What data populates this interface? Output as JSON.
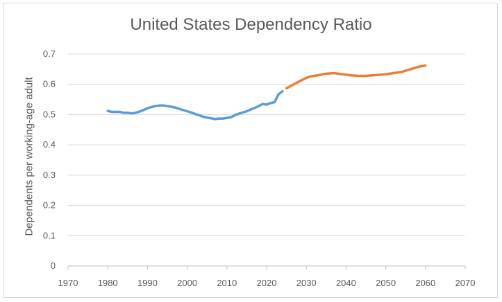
{
  "chart_data": {
    "type": "line",
    "title": "United States Dependency Ratio",
    "xlabel": "",
    "ylabel": "Dependents per working-age adult",
    "xlim": [
      1970,
      2070
    ],
    "ylim": [
      0,
      0.7
    ],
    "xticks": [
      "1970",
      "1980",
      "1990",
      "2000",
      "2010",
      "2020",
      "2030",
      "2040",
      "2050",
      "2060",
      "2070"
    ],
    "yticks": [
      "0",
      "0.1",
      "0.2",
      "0.3",
      "0.4",
      "0.5",
      "0.6",
      "0.7"
    ],
    "grid": "horizontal",
    "legend": "none",
    "series": [
      {
        "color": "#5b9bd5",
        "x": [
          1980,
          1981,
          1982,
          1983,
          1984,
          1985,
          1986,
          1987,
          1988,
          1989,
          1990,
          1991,
          1992,
          1993,
          1994,
          1995,
          1996,
          1997,
          1998,
          1999,
          2000,
          2001,
          2002,
          2003,
          2004,
          2005,
          2006,
          2007,
          2008,
          2009,
          2010,
          2011,
          2012,
          2013,
          2014,
          2015,
          2016,
          2017,
          2018,
          2019,
          2020,
          2021,
          2022,
          2023,
          2024
        ],
        "y": [
          0.512,
          0.509,
          0.509,
          0.509,
          0.506,
          0.506,
          0.504,
          0.506,
          0.51,
          0.515,
          0.521,
          0.525,
          0.528,
          0.53,
          0.53,
          0.528,
          0.526,
          0.523,
          0.519,
          0.515,
          0.511,
          0.507,
          0.502,
          0.498,
          0.493,
          0.49,
          0.488,
          0.485,
          0.487,
          0.487,
          0.489,
          0.491,
          0.498,
          0.503,
          0.507,
          0.511,
          0.517,
          0.522,
          0.528,
          0.535,
          0.533,
          0.538,
          0.541,
          0.567,
          0.577
        ]
      },
      {
        "color": "#ed7d31",
        "x": [
          2025,
          2026,
          2027,
          2028,
          2029,
          2030,
          2031,
          2032,
          2033,
          2034,
          2035,
          2036,
          2037,
          2038,
          2039,
          2040,
          2041,
          2042,
          2043,
          2044,
          2045,
          2046,
          2047,
          2048,
          2049,
          2050,
          2051,
          2052,
          2053,
          2054,
          2055,
          2056,
          2057,
          2058,
          2059,
          2060
        ],
        "y": [
          0.587,
          0.594,
          0.601,
          0.608,
          0.615,
          0.621,
          0.626,
          0.628,
          0.63,
          0.633,
          0.635,
          0.636,
          0.637,
          0.635,
          0.633,
          0.632,
          0.63,
          0.629,
          0.628,
          0.628,
          0.628,
          0.629,
          0.63,
          0.631,
          0.632,
          0.633,
          0.635,
          0.637,
          0.639,
          0.641,
          0.645,
          0.649,
          0.653,
          0.657,
          0.66,
          0.662
        ]
      }
    ]
  }
}
